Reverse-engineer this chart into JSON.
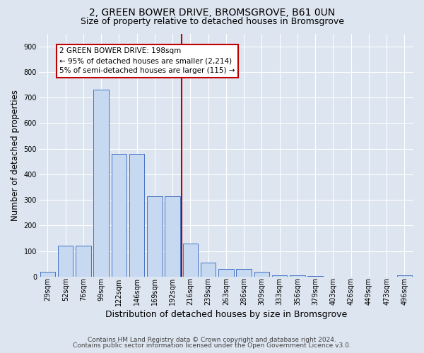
{
  "title": "2, GREEN BOWER DRIVE, BROMSGROVE, B61 0UN",
  "subtitle": "Size of property relative to detached houses in Bromsgrove",
  "xlabel": "Distribution of detached houses by size in Bromsgrove",
  "ylabel": "Number of detached properties",
  "footer_line1": "Contains HM Land Registry data © Crown copyright and database right 2024.",
  "footer_line2": "Contains public sector information licensed under the Open Government Licence v3.0.",
  "bar_labels": [
    "29sqm",
    "52sqm",
    "76sqm",
    "99sqm",
    "122sqm",
    "146sqm",
    "169sqm",
    "192sqm",
    "216sqm",
    "239sqm",
    "263sqm",
    "286sqm",
    "309sqm",
    "333sqm",
    "356sqm",
    "379sqm",
    "403sqm",
    "426sqm",
    "449sqm",
    "473sqm",
    "496sqm"
  ],
  "bar_values": [
    18,
    120,
    120,
    730,
    480,
    480,
    315,
    315,
    130,
    55,
    30,
    30,
    18,
    5,
    5,
    3,
    0,
    0,
    0,
    0,
    5
  ],
  "bar_color": "#c6d9f1",
  "bar_edge_color": "#4472c4",
  "vline_color": "#c00000",
  "annotation_line1": "2 GREEN BOWER DRIVE: 198sqm",
  "annotation_line2": "← 95% of detached houses are smaller (2,214)",
  "annotation_line3": "5% of semi-detached houses are larger (115) →",
  "ylim_max": 950,
  "yticks": [
    0,
    100,
    200,
    300,
    400,
    500,
    600,
    700,
    800,
    900
  ],
  "background_color": "#dde5f0",
  "grid_color": "#ffffff",
  "title_fontsize": 10,
  "subtitle_fontsize": 9,
  "ylabel_fontsize": 8.5,
  "xlabel_fontsize": 9,
  "tick_fontsize": 7,
  "annotation_fontsize": 7.5,
  "footer_fontsize": 6.5
}
